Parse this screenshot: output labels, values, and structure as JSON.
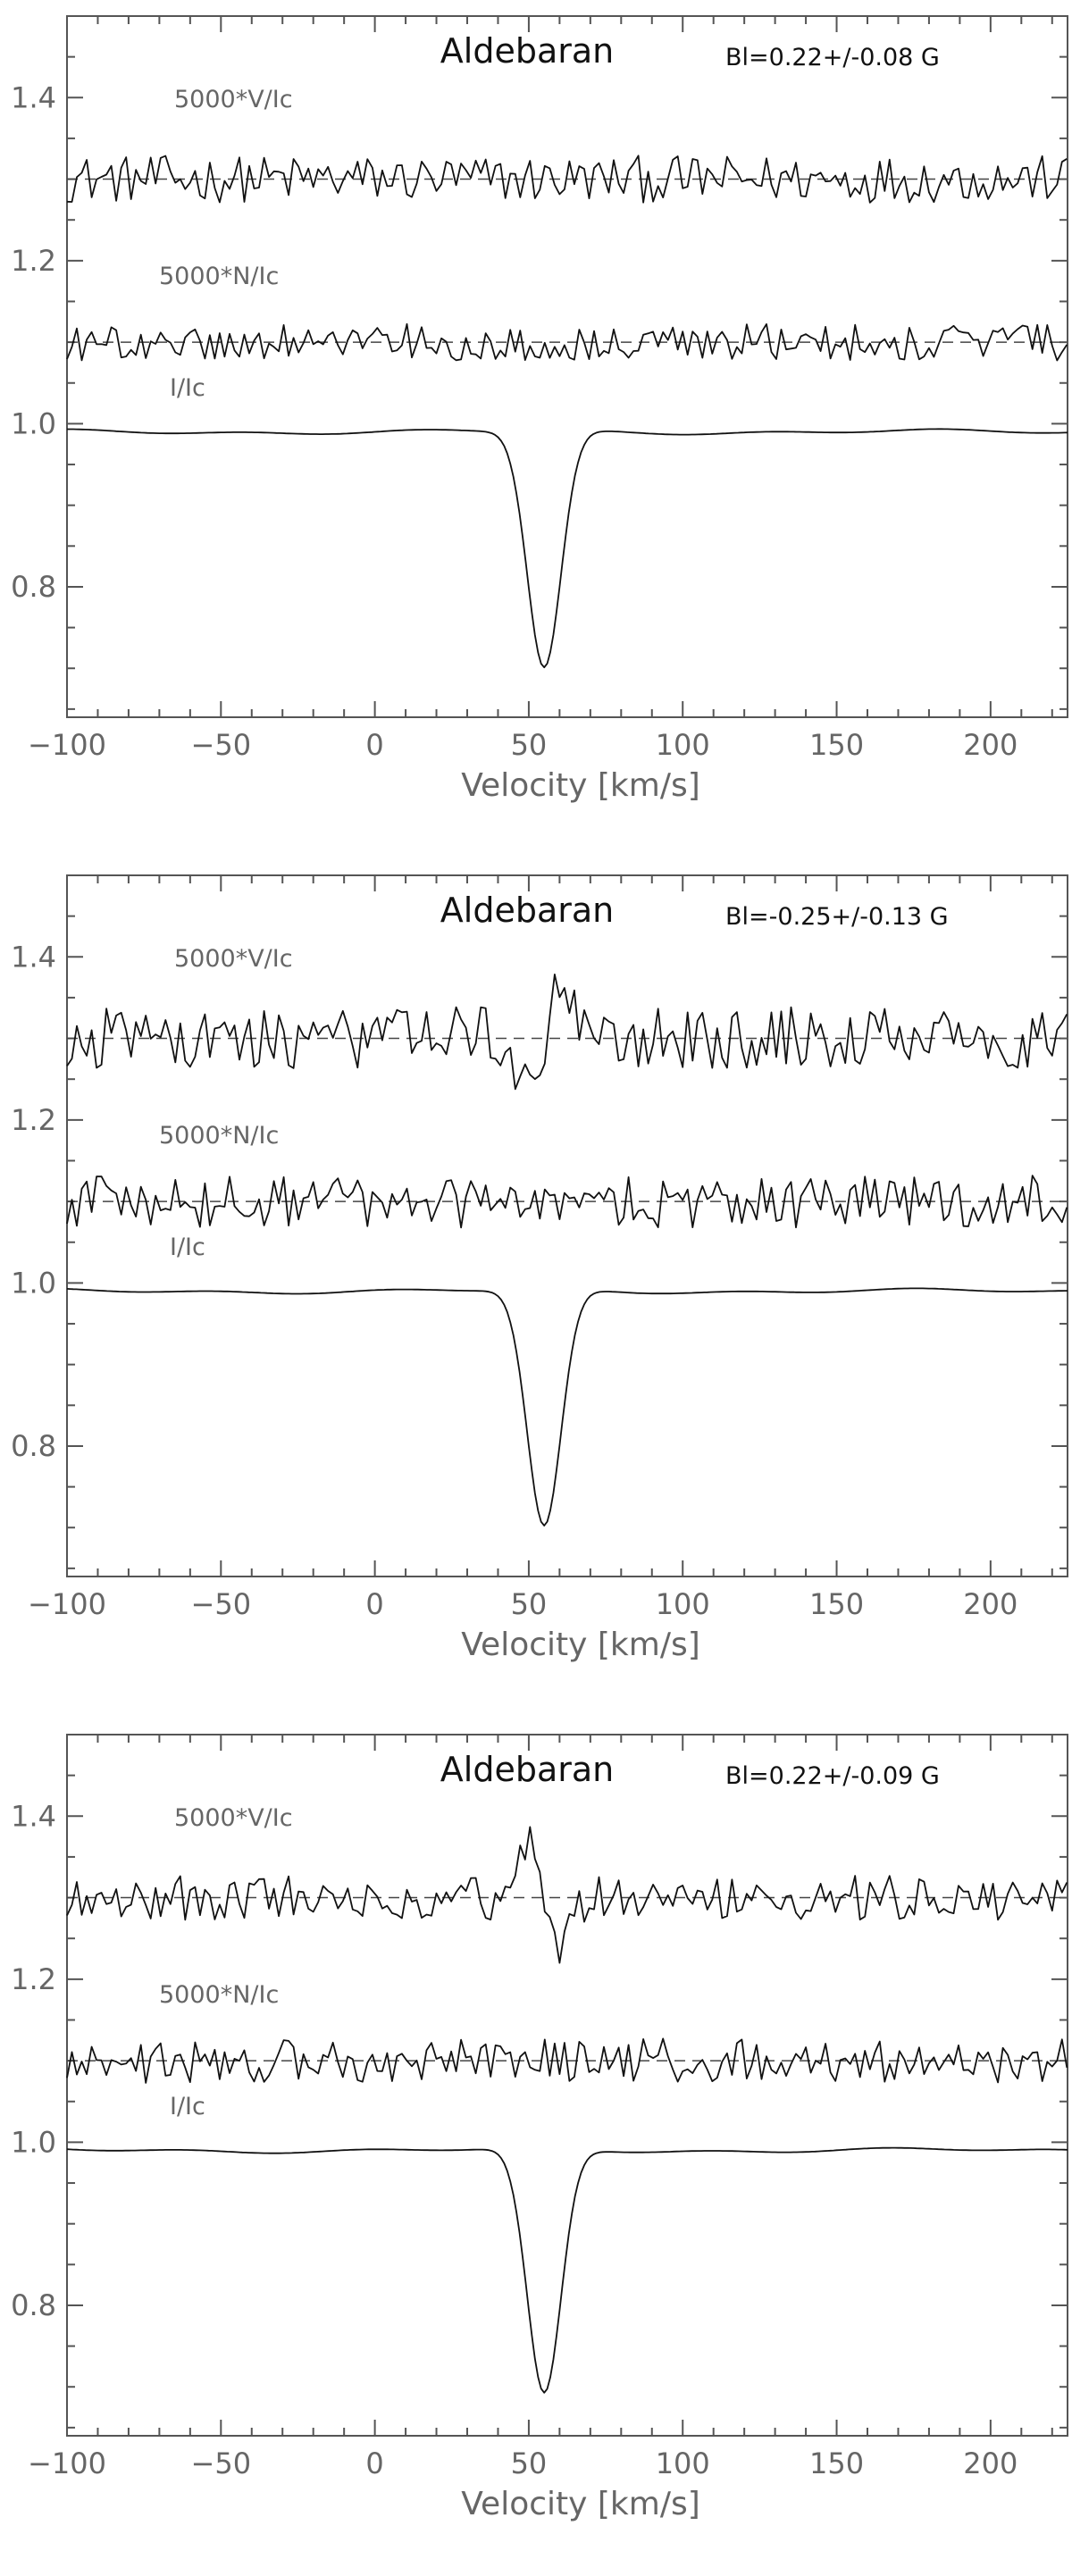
{
  "chart_data": [
    {
      "type": "line",
      "title": "Aldebaran",
      "field_annotation": "Bl=0.22+/-0.08 G",
      "xlabel": "Velocity [km/s]",
      "ylabel": "",
      "xlim": [
        -100,
        225
      ],
      "ylim": [
        0.64,
        1.5
      ],
      "x_ticks": [
        "-100",
        "-50",
        "0",
        "50",
        "100",
        "150",
        "200"
      ],
      "y_ticks": [
        "0.8",
        "1.0",
        "1.2",
        "1.4"
      ],
      "series": [
        {
          "name": "5000*V/Ic",
          "offset": 1.3,
          "noise": 0.018,
          "signature": 0.0,
          "center": 55
        },
        {
          "name": "5000*N/Ic",
          "offset": 1.1,
          "noise": 0.014,
          "signature": 0.0,
          "center": 55
        },
        {
          "name": "I/Ic",
          "continuum": 0.99,
          "center": 55,
          "depth": 0.29,
          "sigma": 5.5
        }
      ]
    },
    {
      "type": "line",
      "title": "Aldebaran",
      "field_annotation": "Bl=-0.25+/-0.13 G",
      "xlabel": "Velocity [km/s]",
      "ylabel": "",
      "xlim": [
        -100,
        225
      ],
      "ylim": [
        0.64,
        1.5
      ],
      "x_ticks": [
        "-100",
        "-50",
        "0",
        "50",
        "100",
        "150",
        "200"
      ],
      "y_ticks": [
        "0.8",
        "1.0",
        "1.2",
        "1.4"
      ],
      "series": [
        {
          "name": "5000*V/Ic",
          "offset": 1.3,
          "noise": 0.024,
          "signature": -0.075,
          "center": 55
        },
        {
          "name": "5000*N/Ic",
          "offset": 1.1,
          "noise": 0.02,
          "signature": 0.0,
          "center": 55
        },
        {
          "name": "I/Ic",
          "continuum": 0.99,
          "center": 55,
          "depth": 0.29,
          "sigma": 5.5
        }
      ]
    },
    {
      "type": "line",
      "title": "Aldebaran",
      "field_annotation": "Bl=0.22+/-0.09 G",
      "xlabel": "Velocity [km/s]",
      "ylabel": "",
      "xlim": [
        -100,
        225
      ],
      "ylim": [
        0.64,
        1.5
      ],
      "x_ticks": [
        "-100",
        "-50",
        "0",
        "50",
        "100",
        "150",
        "200"
      ],
      "y_ticks": [
        "0.8",
        "1.0",
        "1.2",
        "1.4"
      ],
      "series": [
        {
          "name": "5000*V/Ic",
          "offset": 1.3,
          "noise": 0.017,
          "signature": 0.07,
          "center": 55
        },
        {
          "name": "5000*N/Ic",
          "offset": 1.1,
          "noise": 0.017,
          "signature": 0.0,
          "center": 55
        },
        {
          "name": "I/Ic",
          "continuum": 0.99,
          "center": 55,
          "depth": 0.3,
          "sigma": 5.5
        }
      ]
    }
  ]
}
